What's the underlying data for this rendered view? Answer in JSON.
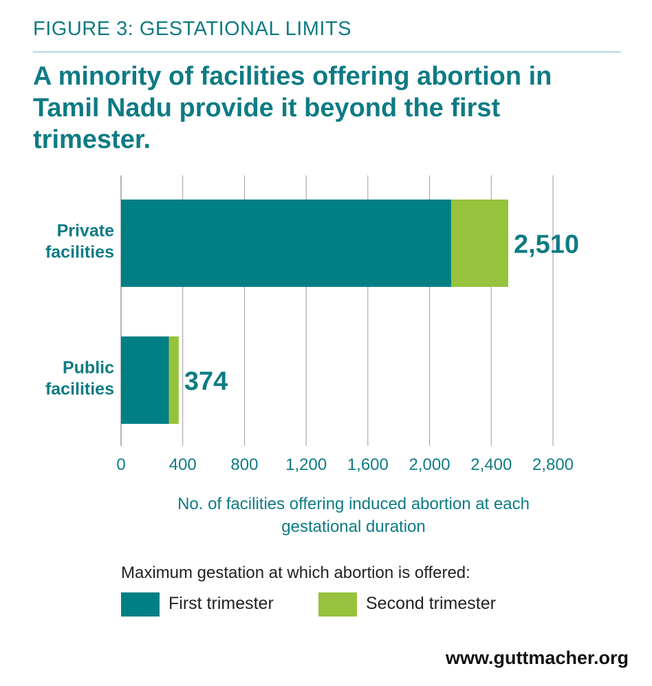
{
  "header": {
    "kicker": "FIGURE 3: GESTATIONAL LIMITS",
    "headline": "A minority of facilities offering abortion in Tamil Nadu provide it beyond the first trimester."
  },
  "colors": {
    "first_trimester": "#007f85",
    "second_trimester": "#97c23d",
    "text_accent": "#0e7b84"
  },
  "chart_data": {
    "type": "bar",
    "orientation": "horizontal",
    "stacked": true,
    "categories": [
      [
        "Private",
        "facilities"
      ],
      [
        "Public",
        "facilities"
      ]
    ],
    "series": [
      {
        "name": "First trimester",
        "values": [
          2140,
          310
        ],
        "color": "#007f85"
      },
      {
        "name": "Second trimester",
        "values": [
          370,
          64
        ],
        "color": "#97c23d"
      }
    ],
    "totals": [
      2510,
      374
    ],
    "total_labels": [
      "2,510",
      "374"
    ],
    "xlim": [
      0,
      2800
    ],
    "xticks": [
      0,
      400,
      800,
      1200,
      1600,
      2000,
      2400,
      2800
    ],
    "xtick_labels": [
      "0",
      "400",
      "800",
      "1,200",
      "1,600",
      "2,000",
      "2,400",
      "2,800"
    ],
    "xlabel": "No. of facilities offering induced abortion at each gestational duration",
    "grid": true
  },
  "legend": {
    "title": "Maximum gestation at which abortion is offered:",
    "items": [
      "First trimester",
      "Second trimester"
    ]
  },
  "source": "www.guttmacher.org"
}
